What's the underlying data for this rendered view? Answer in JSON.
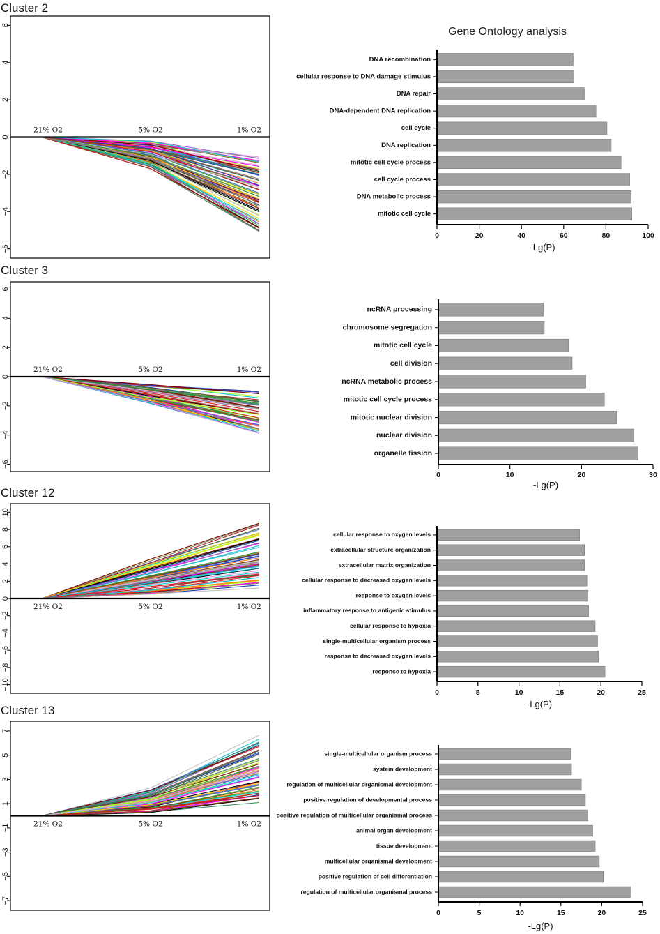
{
  "figure_title": "Gene Ontology analysis",
  "colors": {
    "bar": "#a0a0a2",
    "bar_edge": "#7a7a7a",
    "axis": "#000000",
    "line_palette": [
      "#000000",
      "#e31a1c",
      "#1f3fbf",
      "#33a02c",
      "#ff00ff",
      "#17becf",
      "#ffd700",
      "#8b4513",
      "#9467bd",
      "#808080",
      "#ff7f0e",
      "#00ced1",
      "#556b2f",
      "#b22222",
      "#4169e1",
      "#adff2f",
      "#c0c0c0",
      "#800000",
      "#2e8b57",
      "#dda0dd"
    ]
  },
  "chart_data": [
    {
      "type": "line",
      "panel": "Cluster 2 profiles",
      "title": "Cluster 2",
      "x": [
        "21% O2",
        "5% O2",
        "1% O2"
      ],
      "ylim": [
        -6.5,
        6.5
      ],
      "yticks": [
        -6,
        -4,
        -2,
        0,
        2,
        4,
        6
      ],
      "ytick_labels": [
        "−6",
        "−4",
        "−2",
        "0",
        "2",
        "4",
        "6"
      ],
      "series_count": 70,
      "mid_range": [
        -1.7,
        -0.2
      ],
      "end_range": [
        -5.3,
        -1.0
      ]
    },
    {
      "type": "bar",
      "orientation": "horizontal",
      "panel": "Cluster 2 GO",
      "categories": [
        "DNA recombination",
        "cellular response to DNA damage stimulus",
        "DNA repair",
        "DNA-dependent DNA replication",
        "cell cycle",
        "DNA replication",
        "mitotic cell cycle process",
        "cell cycle process",
        "DNA metabolic process",
        "mitotic cell cycle"
      ],
      "values": [
        64.5,
        64.8,
        69.8,
        75.3,
        80.5,
        82.5,
        87.2,
        91.3,
        92.0,
        92.3
      ],
      "xlim": [
        0,
        100
      ],
      "xticks": [
        "0",
        "20",
        "40",
        "60",
        "80",
        "100"
      ],
      "xlabel": "-Lg(P)"
    },
    {
      "type": "line",
      "panel": "Cluster 3 profiles",
      "title": "Cluster 3",
      "x": [
        "21% O2",
        "5% O2",
        "1% O2"
      ],
      "ylim": [
        -6.5,
        6.5
      ],
      "yticks": [
        -6,
        -4,
        -2,
        0,
        2,
        4,
        6
      ],
      "ytick_labels": [
        "−6",
        "−4",
        "−2",
        "0",
        "2",
        "4",
        "6"
      ],
      "series_count": 60,
      "mid_range": [
        -1.9,
        -0.5
      ],
      "end_range": [
        -3.9,
        -1.0
      ]
    },
    {
      "type": "bar",
      "orientation": "horizontal",
      "panel": "Cluster 3 GO",
      "categories": [
        "ncRNA processing",
        "chromosome segregation",
        "mitotic cell cycle",
        "cell division",
        "ncRNA metabolic process",
        "mitotic cell cycle process",
        "mitotic nuclear division",
        "nuclear division",
        "organelle fission"
      ],
      "values": [
        14.7,
        14.8,
        18.2,
        18.7,
        20.6,
        23.2,
        24.9,
        27.3,
        27.9
      ],
      "xlim": [
        0,
        30
      ],
      "xticks": [
        "0",
        "10",
        "20",
        "30"
      ],
      "xlabel": "-Lg(P)"
    },
    {
      "type": "line",
      "panel": "Cluster 12 profiles",
      "title": "Cluster 12",
      "x": [
        "21% O2",
        "5% O2",
        "1% O2"
      ],
      "ylim": [
        -11,
        11
      ],
      "yticks": [
        -10,
        -8,
        -6,
        -4,
        -2,
        0,
        2,
        4,
        6,
        8,
        10
      ],
      "ytick_labels": [
        "−10",
        "−8",
        "−6",
        "−4",
        "−2",
        "0",
        "2",
        "4",
        "6",
        "8",
        "10"
      ],
      "series_count": 70,
      "mid_range": [
        0.3,
        4.6
      ],
      "end_range": [
        1.0,
        9.1
      ]
    },
    {
      "type": "bar",
      "orientation": "horizontal",
      "panel": "Cluster 12 GO",
      "categories": [
        "cellular response to oxygen levels",
        "extracellular structure organization",
        "extracellular matrix organization",
        "cellular response to decreased oxygen levels",
        "response to oxygen levels",
        "inflammatory response to antigenic stimulus",
        "cellular response to hypoxia",
        "single-multicellular organism process",
        "response to decreased oxygen levels",
        "response to hypoxia"
      ],
      "values": [
        17.4,
        18.0,
        18.0,
        18.3,
        18.4,
        18.5,
        19.3,
        19.6,
        19.7,
        20.5
      ],
      "xlim": [
        0,
        25
      ],
      "xticks": [
        "0",
        "5",
        "10",
        "15",
        "20",
        "25"
      ],
      "xlabel": "-Lg(P)"
    },
    {
      "type": "line",
      "panel": "Cluster 13 profiles",
      "title": "Cluster 13",
      "x": [
        "21% O2",
        "5% O2",
        "1% O2"
      ],
      "ylim": [
        -7.8,
        7.8
      ],
      "yticks": [
        -7,
        -5,
        -3,
        -1,
        1,
        3,
        5,
        7
      ],
      "ytick_labels": [
        "−7",
        "−5",
        "−3",
        "−1",
        "1",
        "3",
        "5",
        "7"
      ],
      "series_count": 60,
      "mid_range": [
        0.2,
        2.3
      ],
      "end_range": [
        1.0,
        6.7
      ]
    },
    {
      "type": "bar",
      "orientation": "horizontal",
      "panel": "Cluster 13 GO",
      "categories": [
        "single-multicellular organism process",
        "system development",
        "regulation of multicellular organismal development",
        "positive regulation of developmental process",
        "positive regulation of multicellular organismal process",
        "animal organ development",
        "tissue development",
        "multicellular organismal development",
        "positive regulation of cell differentiation",
        "regulation of multicellular organismal process"
      ],
      "values": [
        16.2,
        16.3,
        17.5,
        18.0,
        18.3,
        18.9,
        19.2,
        19.7,
        20.2,
        23.5
      ],
      "xlim": [
        0,
        25
      ],
      "xticks": [
        "0",
        "5",
        "10",
        "15",
        "20",
        "25"
      ],
      "xlabel": "-Lg(P)"
    }
  ]
}
